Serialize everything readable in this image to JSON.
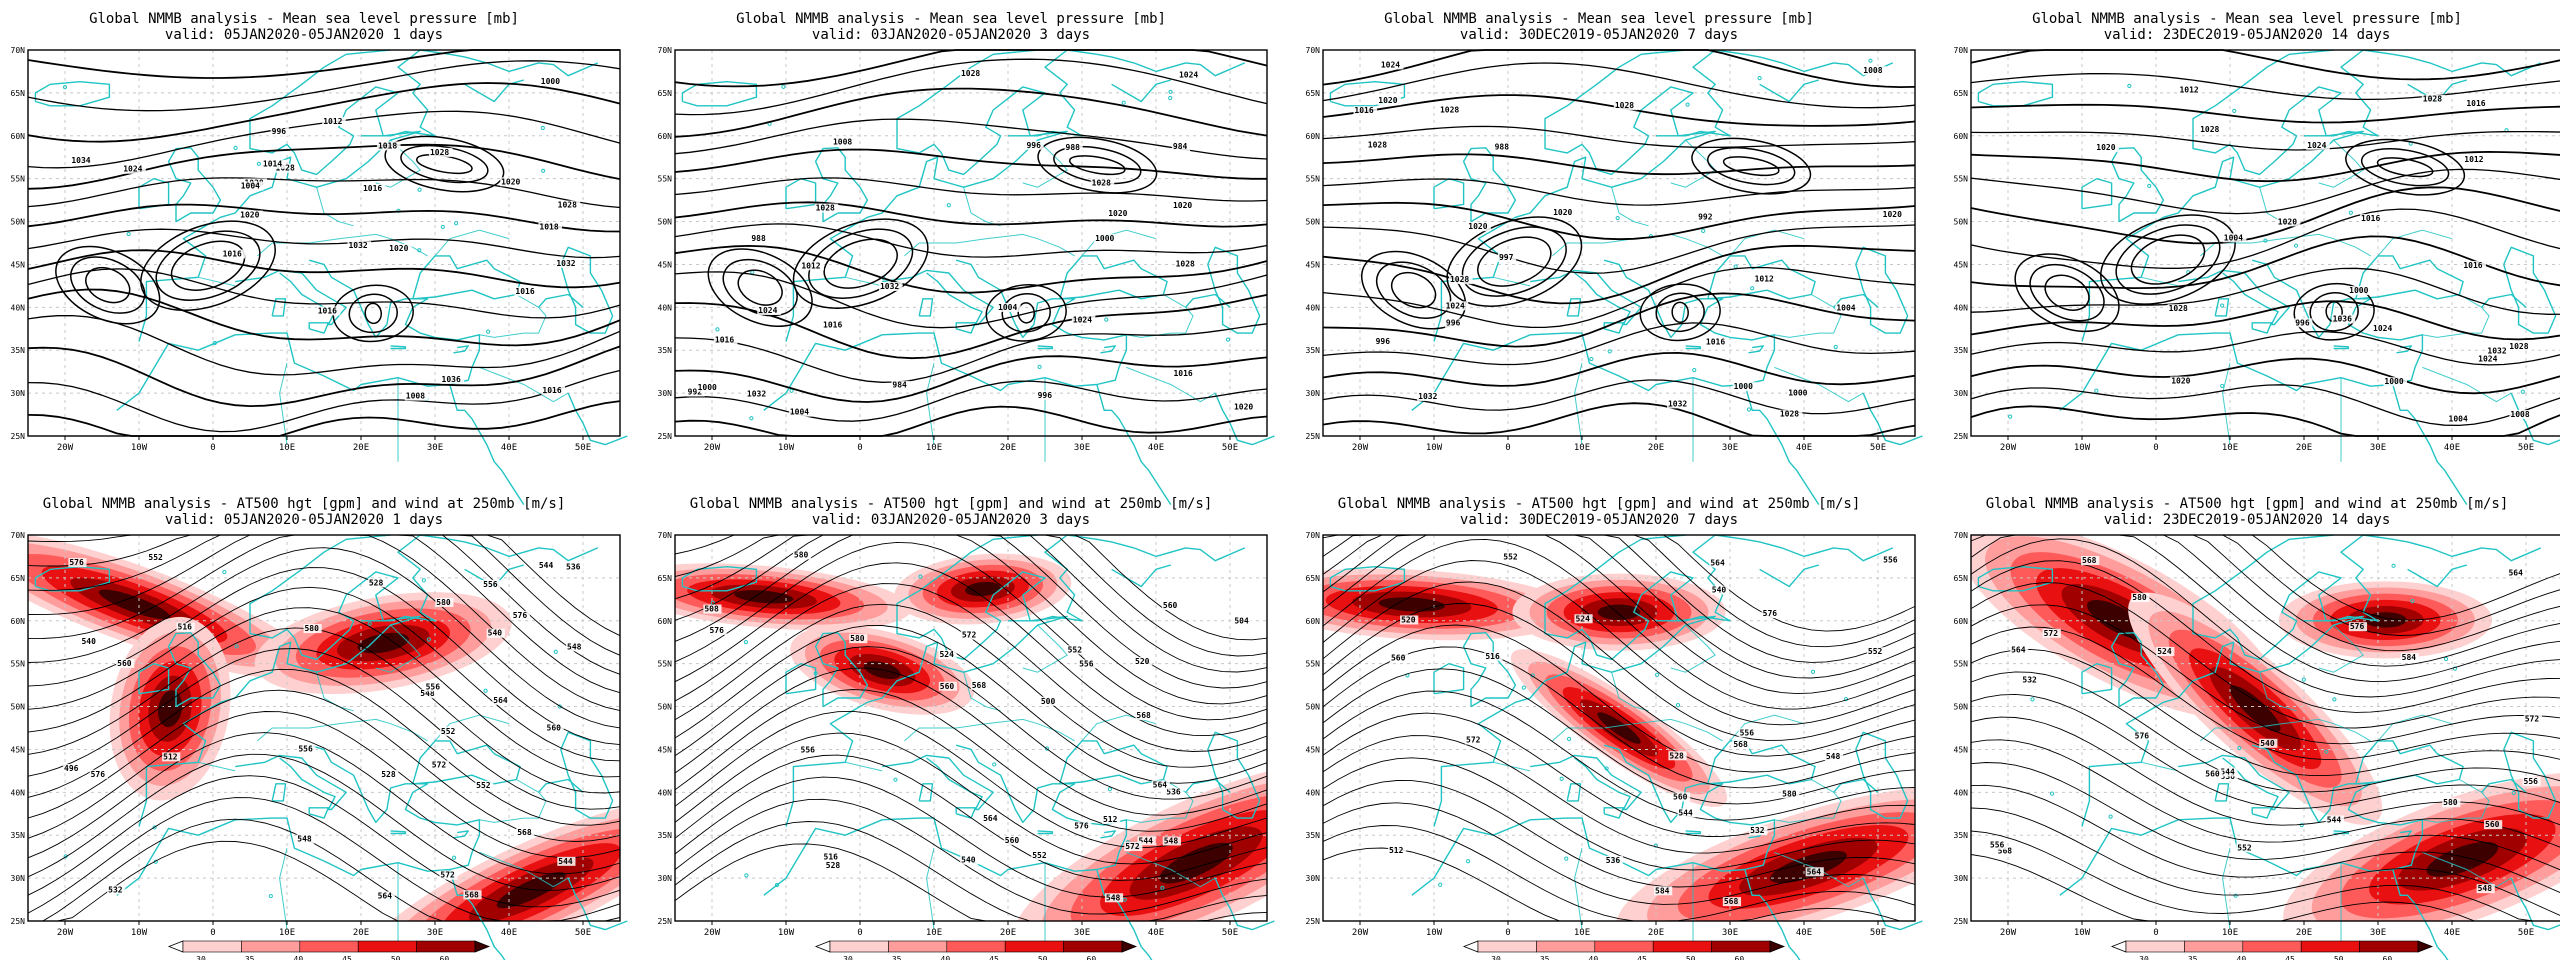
{
  "colors": {
    "frame": "#000000",
    "isobar": "#000000",
    "coastline": "#21c4c4",
    "gridline": "#c8c8c8",
    "wind_scale": [
      "#ffffff",
      "#ffd0d0",
      "#ff9c9c",
      "#ff5a5a",
      "#e81010",
      "#a00000",
      "#3c0000"
    ]
  },
  "icons": {
    "colorbar_end": "triangle"
  },
  "axes": {
    "x_ticks": [
      "20W",
      "10W",
      "0",
      "10E",
      "20E",
      "30E",
      "40E",
      "50E"
    ],
    "y_ticks": [
      "70N",
      "65N",
      "60N",
      "55N",
      "50N",
      "45N",
      "40N",
      "35N",
      "30N",
      "25N"
    ]
  },
  "colorbar_ticks": [
    "30",
    "35",
    "40",
    "45",
    "50",
    "60"
  ],
  "rows": [
    {
      "kind": "mslp",
      "title": "Global NMMB analysis - Mean sea level pressure [mb]",
      "panels": [
        {
          "valid": "valid: 05JAN2020-05JAN2020   1 days",
          "labels": [
            "1016",
            "1028",
            "1020",
            "1024",
            "1028",
            "1032",
            "1036",
            "1034",
            "1032",
            "996",
            "1000",
            "1004",
            "1008",
            "1012",
            "1014",
            "1020",
            "1016",
            "1018",
            "1018",
            "1016",
            "1020",
            "1016",
            "1028",
            "1028",
            "1016"
          ]
        },
        {
          "valid": "valid: 03JAN2020-05JAN2020   3 days",
          "labels": [
            "996",
            "1000",
            "988",
            "984",
            "984",
            "988",
            "992",
            "996",
            "1000",
            "1004",
            "1004",
            "1008",
            "1012",
            "1016",
            "1024",
            "1028",
            "1032",
            "1024",
            "1024",
            "1016",
            "1020",
            "1020",
            "1016",
            "1020",
            "1028",
            "1028",
            "1032",
            "1028"
          ]
        },
        {
          "valid": "valid: 30DEC2019-05JAN2020   7 days",
          "labels": [
            "997",
            "996",
            "988",
            "992",
            "996",
            "1000",
            "1004",
            "1008",
            "1012",
            "1000",
            "1016",
            "1020",
            "1024",
            "1032",
            "1028",
            "1024",
            "1020",
            "1020",
            "1016",
            "1020",
            "1028",
            "1028",
            "1032",
            "1028",
            "1028"
          ]
        },
        {
          "valid": "valid: 23DEC2019-05JAN2020   14 days",
          "labels": [
            "996",
            "1000",
            "1000",
            "1004",
            "1004",
            "1008",
            "1012",
            "1020",
            "1024",
            "1028",
            "1020",
            "1028",
            "1032",
            "1036",
            "1020",
            "1016",
            "1012",
            "1016",
            "1028",
            "1024",
            "1024",
            "1028",
            "1016"
          ]
        }
      ]
    },
    {
      "kind": "z500",
      "title": "Global NMMB analysis - AT500 hgt [gpm] and wind at 250mb [m/s]",
      "panels": [
        {
          "valid": "valid: 05JAN2020-05JAN2020   1 days",
          "labels": [
            "528",
            "496",
            "512",
            "516",
            "528",
            "540",
            "544",
            "548",
            "552",
            "556",
            "560",
            "564",
            "568",
            "572",
            "576",
            "580",
            "532",
            "536",
            "540",
            "544",
            "548",
            "552",
            "556",
            "560",
            "580",
            "576",
            "576",
            "548",
            "552",
            "556",
            "564",
            "568",
            "572"
          ]
        },
        {
          "valid": "valid: 03JAN2020-05JAN2020   3 days",
          "labels": [
            "504",
            "500",
            "508",
            "512",
            "516",
            "520",
            "524",
            "528",
            "536",
            "540",
            "544",
            "548",
            "552",
            "556",
            "560",
            "564",
            "568",
            "572",
            "576",
            "580",
            "560",
            "552",
            "548",
            "556",
            "560",
            "564",
            "568",
            "572",
            "576",
            "580"
          ]
        },
        {
          "valid": "valid: 30DEC2019-05JAN2020   7 days",
          "labels": [
            "512",
            "516",
            "520",
            "524",
            "528",
            "532",
            "536",
            "540",
            "544",
            "548",
            "552",
            "556",
            "560",
            "564",
            "568",
            "572",
            "576",
            "580",
            "584",
            "552",
            "556",
            "560",
            "564",
            "568"
          ]
        },
        {
          "valid": "valid: 23DEC2019-05JAN2020   14 days",
          "labels": [
            "524",
            "532",
            "536",
            "540",
            "544",
            "548",
            "552",
            "556",
            "560",
            "564",
            "568",
            "572",
            "576",
            "580",
            "584",
            "544",
            "556",
            "560",
            "564",
            "568",
            "572",
            "576",
            "580"
          ]
        }
      ]
    }
  ]
}
